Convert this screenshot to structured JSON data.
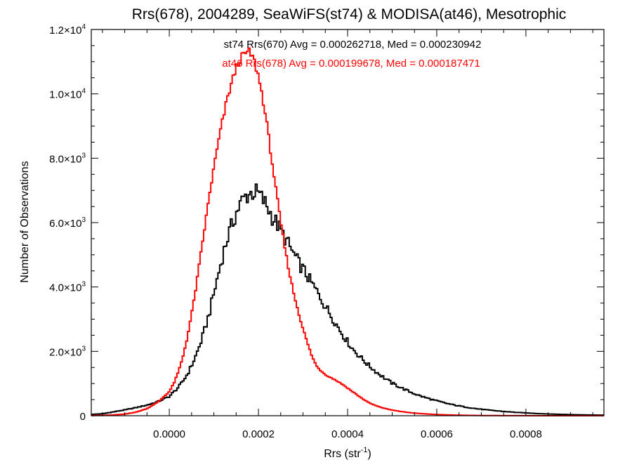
{
  "chart_data": {
    "type": "line",
    "title": "Rrs(678), 2004289, SeaWiFS(st74) & MODISA(at46), Mesotrophic",
    "xlabel": "Rrs (str",
    "xlabel_sup": "-1",
    "xlabel_close": ")",
    "ylabel": "Number of Observations",
    "xlim": [
      -0.000175,
      0.000975
    ],
    "ylim": [
      0,
      12000
    ],
    "x_ticks": [
      0.0,
      0.0002,
      0.0004,
      0.0006,
      0.0008
    ],
    "x_tick_labels": [
      "0.0000",
      "0.0002",
      "0.0004",
      "0.0006",
      "0.0008"
    ],
    "y_ticks": [
      0,
      2000,
      4000,
      6000,
      8000,
      10000,
      12000
    ],
    "y_tick_labels": [
      {
        "base": "0",
        "exp": ""
      },
      {
        "base": "2.0×10",
        "exp": "3"
      },
      {
        "base": "4.0×10",
        "exp": "3"
      },
      {
        "base": "6.0×10",
        "exp": "3"
      },
      {
        "base": "8.0×10",
        "exp": "3"
      },
      {
        "base": "1.0×10",
        "exp": "4"
      },
      {
        "base": "1.2×10",
        "exp": "4"
      }
    ],
    "grid": false,
    "step": true,
    "annotations": [
      {
        "text": "st74 Rrs(670) Avg = 0.000262718, Med = 0.000230942",
        "color": "#000000"
      },
      {
        "text": "at46 Rrs(678) Avg = 0.000199678, Med = 0.000187471",
        "color": "#ff0000"
      }
    ],
    "series": [
      {
        "color": "#000000",
        "points": [
          [
            -0.000175,
            40
          ],
          [
            -0.00015,
            60
          ],
          [
            -0.000125,
            120
          ],
          [
            -0.0001,
            180
          ],
          [
            -7.5e-05,
            250
          ],
          [
            -5e-05,
            330
          ],
          [
            -2.5e-05,
            440
          ],
          [
            0.0,
            600
          ],
          [
            1e-05,
            740
          ],
          [
            2e-05,
            880
          ],
          [
            3e-05,
            1060
          ],
          [
            4e-05,
            1280
          ],
          [
            5e-05,
            1550
          ],
          [
            6e-05,
            1880
          ],
          [
            7e-05,
            2250
          ],
          [
            8e-05,
            2700
          ],
          [
            9e-05,
            3200
          ],
          [
            0.0001,
            3800
          ],
          [
            0.00011,
            4400
          ],
          [
            0.00012,
            5000
          ],
          [
            0.00013,
            5500
          ],
          [
            0.00014,
            5900
          ],
          [
            0.00015,
            6300
          ],
          [
            0.00016,
            6600
          ],
          [
            0.00017,
            6800
          ],
          [
            0.00018,
            6900
          ],
          [
            0.00019,
            6950
          ],
          [
            0.0002,
            6900
          ],
          [
            0.00021,
            6700
          ],
          [
            0.00022,
            6500
          ],
          [
            0.00023,
            6200
          ],
          [
            0.00024,
            6000
          ],
          [
            0.00025,
            5750
          ],
          [
            0.00026,
            5500
          ],
          [
            0.00027,
            5250
          ],
          [
            0.00028,
            5000
          ],
          [
            0.00029,
            4750
          ],
          [
            0.0003,
            4550
          ],
          [
            0.00031,
            4330
          ],
          [
            0.00032,
            4100
          ],
          [
            0.00033,
            3880
          ],
          [
            0.00034,
            3650
          ],
          [
            0.00035,
            3400
          ],
          [
            0.00036,
            3180
          ],
          [
            0.00037,
            2950
          ],
          [
            0.00038,
            2720
          ],
          [
            0.00039,
            2500
          ],
          [
            0.0004,
            2300
          ],
          [
            0.00041,
            2100
          ],
          [
            0.00042,
            1950
          ],
          [
            0.00043,
            1800
          ],
          [
            0.00044,
            1660
          ],
          [
            0.00045,
            1530
          ],
          [
            0.00046,
            1410
          ],
          [
            0.00047,
            1300
          ],
          [
            0.00048,
            1200
          ],
          [
            0.00049,
            1100
          ],
          [
            0.0005,
            1010
          ],
          [
            0.00052,
            870
          ],
          [
            0.00054,
            740
          ],
          [
            0.00056,
            630
          ],
          [
            0.00058,
            540
          ],
          [
            0.0006,
            460
          ],
          [
            0.00062,
            390
          ],
          [
            0.00064,
            330
          ],
          [
            0.00066,
            280
          ],
          [
            0.00068,
            235
          ],
          [
            0.0007,
            200
          ],
          [
            0.00072,
            170
          ],
          [
            0.00074,
            145
          ],
          [
            0.00076,
            122
          ],
          [
            0.00078,
            102
          ],
          [
            0.0008,
            86
          ],
          [
            0.00082,
            72
          ],
          [
            0.00084,
            60
          ],
          [
            0.00086,
            50
          ],
          [
            0.00088,
            42
          ],
          [
            0.0009,
            35
          ],
          [
            0.00092,
            29
          ],
          [
            0.00094,
            24
          ],
          [
            0.00096,
            20
          ],
          [
            0.000975,
            18
          ]
        ]
      },
      {
        "color": "#ff0000",
        "points": [
          [
            -0.000175,
            5
          ],
          [
            -0.00015,
            10
          ],
          [
            -0.000125,
            25
          ],
          [
            -0.0001,
            50
          ],
          [
            -7.5e-05,
            110
          ],
          [
            -5e-05,
            220
          ],
          [
            -2.5e-05,
            430
          ],
          [
            0.0,
            750
          ],
          [
            1e-05,
            1000
          ],
          [
            2e-05,
            1350
          ],
          [
            3e-05,
            1800
          ],
          [
            4e-05,
            2400
          ],
          [
            5e-05,
            3150
          ],
          [
            6e-05,
            4000
          ],
          [
            7e-05,
            4950
          ],
          [
            8e-05,
            5900
          ],
          [
            9e-05,
            6850
          ],
          [
            0.0001,
            7700
          ],
          [
            0.00011,
            8500
          ],
          [
            0.00012,
            9200
          ],
          [
            0.00013,
            9850
          ],
          [
            0.00014,
            10350
          ],
          [
            0.00015,
            10800
          ],
          [
            0.00016,
            11100
          ],
          [
            0.00017,
            11250
          ],
          [
            0.00018,
            11300
          ],
          [
            0.00019,
            11050
          ],
          [
            0.0002,
            10550
          ],
          [
            0.00021,
            9850
          ],
          [
            0.00022,
            8950
          ],
          [
            0.00023,
            7950
          ],
          [
            0.00024,
            6950
          ],
          [
            0.00025,
            6000
          ],
          [
            0.00026,
            5150
          ],
          [
            0.00027,
            4400
          ],
          [
            0.00028,
            3750
          ],
          [
            0.00029,
            3200
          ],
          [
            0.0003,
            2700
          ],
          [
            0.00031,
            2250
          ],
          [
            0.00032,
            1850
          ],
          [
            0.00033,
            1550
          ],
          [
            0.00034,
            1400
          ],
          [
            0.00035,
            1280
          ],
          [
            0.00036,
            1200
          ],
          [
            0.00037,
            1130
          ],
          [
            0.00038,
            1050
          ],
          [
            0.00039,
            960
          ],
          [
            0.0004,
            860
          ],
          [
            0.00041,
            760
          ],
          [
            0.00042,
            660
          ],
          [
            0.00043,
            560
          ],
          [
            0.00044,
            470
          ],
          [
            0.00045,
            390
          ],
          [
            0.00046,
            330
          ],
          [
            0.00047,
            280
          ],
          [
            0.00048,
            240
          ],
          [
            0.00049,
            205
          ],
          [
            0.0005,
            175
          ],
          [
            0.00052,
            130
          ],
          [
            0.00054,
            95
          ],
          [
            0.00056,
            70
          ],
          [
            0.00058,
            52
          ],
          [
            0.0006,
            38
          ],
          [
            0.00062,
            28
          ],
          [
            0.00064,
            20
          ],
          [
            0.00066,
            14
          ],
          [
            0.00068,
            10
          ],
          [
            0.0007,
            7
          ],
          [
            0.00074,
            4
          ],
          [
            0.00078,
            2
          ],
          [
            0.00082,
            1
          ],
          [
            0.000975,
            0
          ]
        ]
      }
    ]
  }
}
